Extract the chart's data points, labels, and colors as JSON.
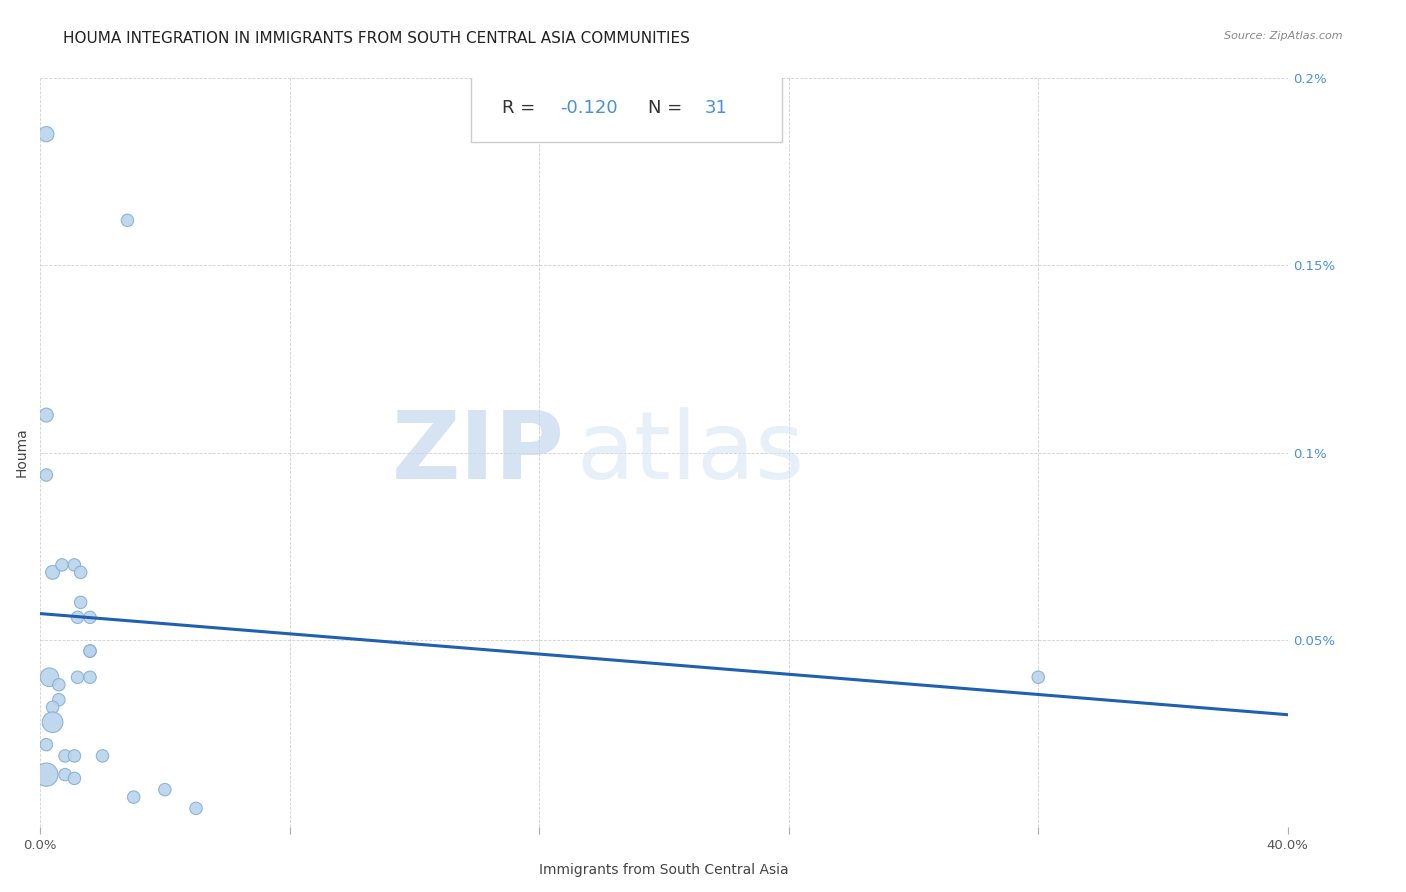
{
  "title": "HOUMA INTEGRATION IN IMMIGRANTS FROM SOUTH CENTRAL ASIA COMMUNITIES",
  "source": "Source: ZipAtlas.com",
  "xlabel": "Immigrants from South Central Asia",
  "ylabel": "Houma",
  "R": -0.12,
  "N": 31,
  "xlim": [
    0.0,
    0.4
  ],
  "ylim": [
    0.0,
    0.2
  ],
  "xticks": [
    0.0,
    0.08,
    0.16,
    0.24,
    0.32,
    0.4
  ],
  "xticklabels": [
    "0.0%",
    "",
    "",
    "",
    "",
    "40.0%"
  ],
  "yticks": [
    0.0,
    0.05,
    0.1,
    0.15,
    0.2
  ],
  "yticklabels": [
    "",
    "0.05%",
    "0.1%",
    "0.15%",
    "0.2%"
  ],
  "scatter_x": [
    0.002,
    0.028,
    0.002,
    0.002,
    0.004,
    0.007,
    0.011,
    0.013,
    0.013,
    0.016,
    0.016,
    0.012,
    0.016,
    0.016,
    0.012,
    0.003,
    0.006,
    0.006,
    0.004,
    0.004,
    0.002,
    0.002,
    0.008,
    0.008,
    0.011,
    0.011,
    0.02,
    0.03,
    0.04,
    0.05,
    0.32
  ],
  "scatter_y": [
    0.185,
    0.162,
    0.11,
    0.094,
    0.068,
    0.07,
    0.07,
    0.068,
    0.06,
    0.056,
    0.047,
    0.056,
    0.047,
    0.04,
    0.04,
    0.04,
    0.038,
    0.034,
    0.032,
    0.028,
    0.022,
    0.014,
    0.019,
    0.014,
    0.019,
    0.013,
    0.019,
    0.008,
    0.01,
    0.005,
    0.04
  ],
  "scatter_sizes": [
    120,
    80,
    100,
    80,
    100,
    80,
    80,
    80,
    80,
    80,
    80,
    80,
    80,
    80,
    80,
    180,
    80,
    80,
    80,
    220,
    80,
    280,
    80,
    80,
    80,
    80,
    80,
    80,
    80,
    80,
    80
  ],
  "scatter_color": "#b8d4ec",
  "scatter_edge_color": "#88aed0",
  "line_color": "#2060b0",
  "regression_x_start": 0.0,
  "regression_x_end": 0.4,
  "regression_y_start": 0.057,
  "regression_y_end": 0.03,
  "watermark_zip": "ZIP",
  "watermark_atlas": "atlas",
  "grid_color": "#d0d0d0",
  "background_color": "#ffffff",
  "title_fontsize": 11,
  "source_fontsize": 8,
  "axis_label_fontsize": 10,
  "tick_label_fontsize": 9.5,
  "stat_R_label": "R = ",
  "stat_R_value": "-0.120",
  "stat_N_label": "N = ",
  "stat_N_value": "31",
  "stat_color_label": "#333333",
  "stat_color_value": "#4a90d9"
}
